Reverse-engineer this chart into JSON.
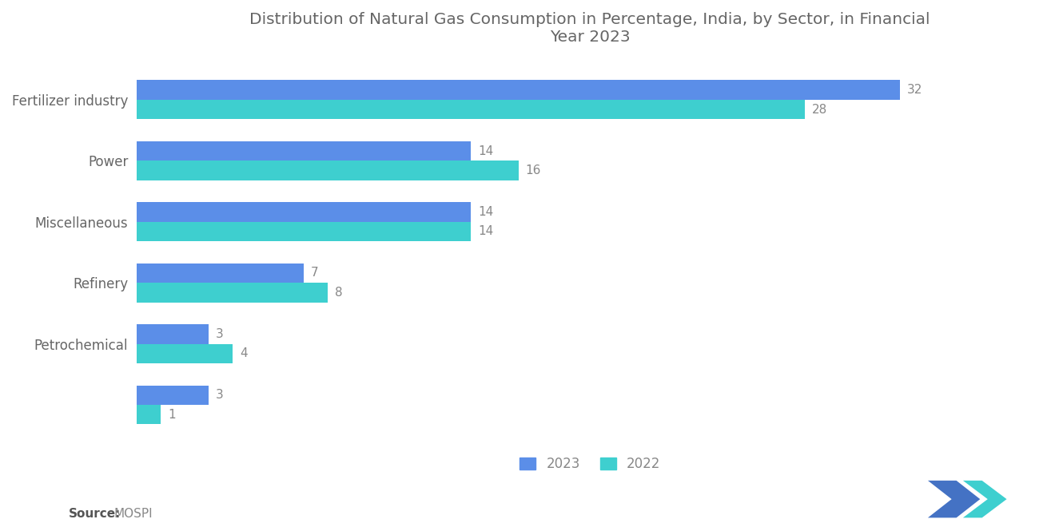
{
  "title": "Distribution of Natural Gas Consumption in Percentage, India, by Sector, in Financial\nYear 2023",
  "categories": [
    "Fertilizer industry",
    "Power",
    "Miscellaneous",
    "Refinery",
    "Petrochemical",
    ""
  ],
  "values_2023": [
    32,
    14,
    14,
    7,
    3,
    3
  ],
  "values_2022": [
    28,
    16,
    14,
    8,
    4,
    1
  ],
  "color_2023": "#5b8ee8",
  "color_2022": "#3ecfcf",
  "background_color": "#ffffff",
  "source_label": "Source:",
  "source_value": "MOSPI",
  "legend_2023": "2023",
  "legend_2022": "2022",
  "bar_height": 0.32,
  "title_fontsize": 14.5,
  "label_fontsize": 12,
  "value_fontsize": 11,
  "source_fontsize": 11,
  "text_color": "#888888",
  "label_color": "#666666"
}
